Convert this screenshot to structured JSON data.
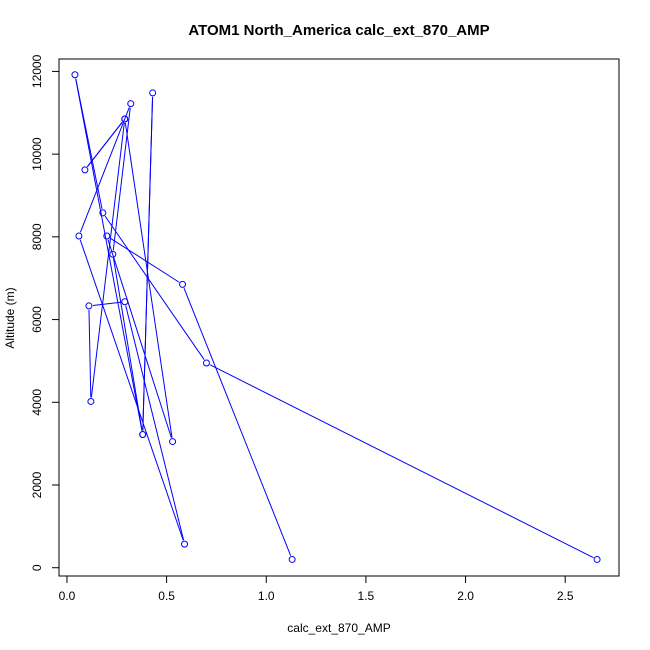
{
  "chart_data": {
    "type": "line",
    "title": "ATOM1 North_America calc_ext_870_AMP",
    "xlabel": "calc_ext_870_AMP",
    "ylabel": "Altitude (m)",
    "xlim": [
      -0.04,
      2.77
    ],
    "ylim": [
      -200,
      12300
    ],
    "x_ticks": [
      0.0,
      0.5,
      1.0,
      1.5,
      2.0,
      2.5
    ],
    "x_tick_labels": [
      "0.0",
      "0.5",
      "1.0",
      "1.5",
      "2.0",
      "2.5"
    ],
    "y_ticks": [
      0,
      2000,
      4000,
      6000,
      8000,
      10000,
      12000
    ],
    "y_tick_labels": [
      "0",
      "2000",
      "4000",
      "6000",
      "8000",
      "10000",
      "12000"
    ],
    "grid": false,
    "legend": "none",
    "color": "#0000ff",
    "series": [
      {
        "x": [
          2.66,
          0.7,
          0.18,
          0.04,
          0.38,
          0.43,
          0.38,
          0.23,
          0.32,
          0.06,
          0.59,
          0.29,
          0.11,
          0.12,
          0.29,
          0.09,
          0.29,
          0.53,
          0.2,
          0.58,
          1.13
        ],
        "y": [
          200,
          4950,
          8580,
          11920,
          3220,
          11480,
          3220,
          7580,
          11220,
          8020,
          570,
          6430,
          6330,
          4020,
          10850,
          9620,
          10850,
          3050,
          8020,
          6850,
          200
        ]
      }
    ]
  }
}
